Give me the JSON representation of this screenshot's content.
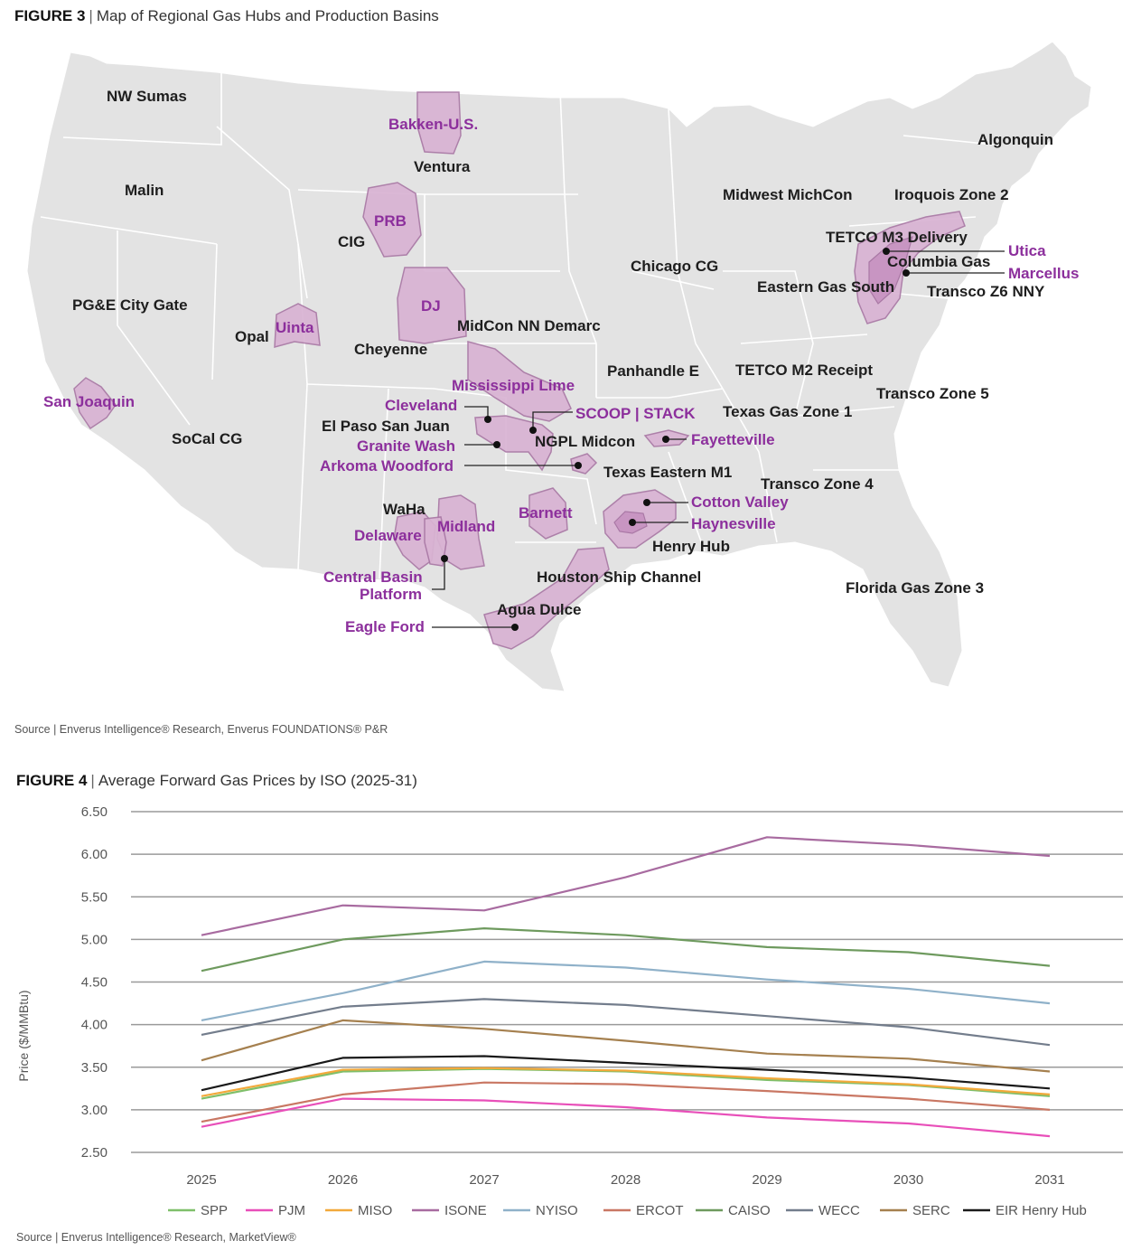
{
  "figure3": {
    "label": "FIGURE 3",
    "separator": "|",
    "title": "Map of Regional Gas Hubs and Production Basins",
    "source": "Source | Enverus Intelligence® Research, Enverus FOUNDATIONS® P&R",
    "colors": {
      "land": "#e3e3e3",
      "border": "#ffffff",
      "basin": "#d9b3d3",
      "basin_text": "#8c2f9c",
      "hub_text": "#1e1e1e"
    },
    "hubs": [
      "NW Sumas",
      "Malin",
      "PG&E City Gate",
      "SoCal CG",
      "Opal",
      "CIG",
      "Cheyenne",
      "Ventura",
      "MidCon NN Demarc",
      "El Paso San Juan",
      "NGPL Midcon",
      "Panhandle E",
      "Chicago CG",
      "Midwest MichCon",
      "TETCO M2 Receipt",
      "Texas Gas Zone 1",
      "Texas Eastern M1",
      "Transco Zone 4",
      "Transco Zone 5",
      "WaHa",
      "Henry Hub",
      "Houston Ship Channel",
      "Agua Dulce",
      "Florida Gas Zone 3",
      "Algonquin",
      "Iroquois Zone 2",
      "TETCO M3 Delivery",
      "Columbia Gas",
      "Eastern Gas South",
      "Transco Z6 NNY"
    ],
    "basins": [
      "Bakken-U.S.",
      "PRB",
      "DJ",
      "Uinta",
      "San Joaquin",
      "Mississippi Lime",
      "Cleveland",
      "SCOOP | STACK",
      "Granite Wash",
      "Arkoma Woodford",
      "Fayetteville",
      "Cotton Valley",
      "Haynesville",
      "Barnett",
      "Delaware",
      "Midland",
      "Central Basin",
      "Platform",
      "Eagle Ford",
      "Utica",
      "Marcellus"
    ]
  },
  "figure4": {
    "label": "FIGURE 4",
    "separator": "|",
    "title": "Average Forward Gas Prices by ISO (2025-31)",
    "source": "Source | Enverus Intelligence® Research, MarketView®"
  },
  "chart_data": {
    "type": "line",
    "title": "Average Forward Gas Prices by ISO (2025-31)",
    "xlabel": "",
    "ylabel": "Price ($/MMBtu)",
    "ylim": [
      2.5,
      6.5
    ],
    "yticks": [
      "6.50",
      "6.00",
      "5.50",
      "5.00",
      "4.50",
      "4.00",
      "3.50",
      "3.00",
      "2.50"
    ],
    "ytick_values": [
      6.5,
      6.0,
      5.5,
      5.0,
      4.5,
      4.0,
      3.5,
      3.0,
      2.5
    ],
    "categories": [
      "2025",
      "2026",
      "2027",
      "2028",
      "2029",
      "2030",
      "2031"
    ],
    "grid": true,
    "legend_position": "bottom",
    "series": [
      {
        "name": "SPP",
        "color": "#7fbf6a",
        "values": [
          3.13,
          3.45,
          3.48,
          3.45,
          3.35,
          3.29,
          3.16
        ]
      },
      {
        "name": "PJM",
        "color": "#e84fb9",
        "values": [
          2.8,
          3.13,
          3.11,
          3.03,
          2.91,
          2.84,
          2.69
        ]
      },
      {
        "name": "MISO",
        "color": "#f2a93b",
        "values": [
          3.16,
          3.47,
          3.49,
          3.46,
          3.37,
          3.3,
          3.18
        ]
      },
      {
        "name": "ISONE",
        "color": "#a86ba0",
        "values": [
          5.05,
          5.4,
          5.34,
          5.73,
          6.2,
          6.11,
          5.98
        ]
      },
      {
        "name": "NYISO",
        "color": "#8fb1c9",
        "values": [
          4.05,
          4.37,
          4.74,
          4.67,
          4.53,
          4.42,
          4.25
        ]
      },
      {
        "name": "ERCOT",
        "color": "#c97763",
        "values": [
          2.86,
          3.18,
          3.32,
          3.3,
          3.22,
          3.13,
          3.0
        ]
      },
      {
        "name": "CAISO",
        "color": "#6e9a5e",
        "values": [
          4.63,
          5.0,
          5.13,
          5.05,
          4.91,
          4.85,
          4.69
        ]
      },
      {
        "name": "WECC",
        "color": "#737d8c",
        "values": [
          3.88,
          4.21,
          4.3,
          4.23,
          4.1,
          3.97,
          3.76
        ]
      },
      {
        "name": "SERC",
        "color": "#a5804f",
        "values": [
          3.58,
          4.05,
          3.95,
          3.81,
          3.66,
          3.6,
          3.45
        ]
      },
      {
        "name": "EIR Henry Hub",
        "color": "#1a1a1a",
        "values": [
          3.23,
          3.61,
          3.63,
          3.55,
          3.47,
          3.38,
          3.25
        ]
      }
    ]
  }
}
